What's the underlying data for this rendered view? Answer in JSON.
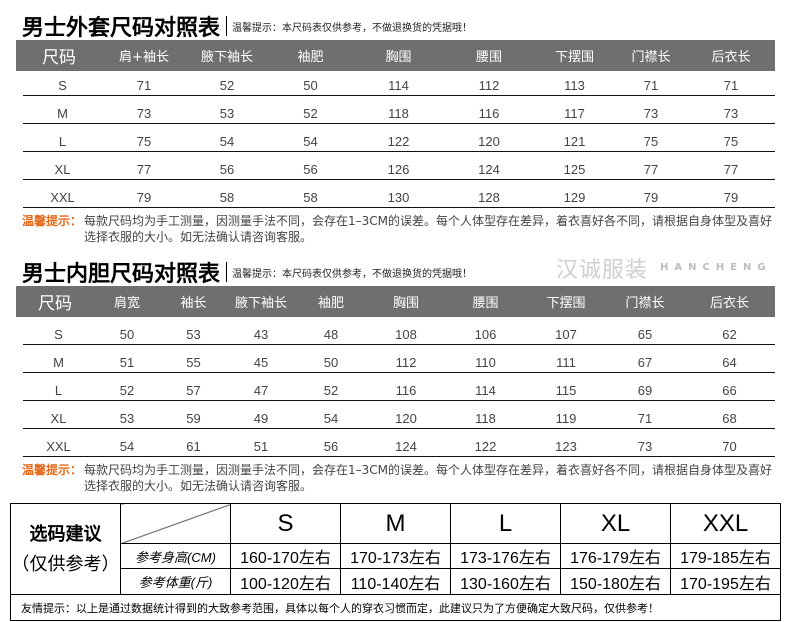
{
  "jacket": {
    "title": "男士外套尺码对照表",
    "tip": "温馨提示：本尺码表仅供参考，不做退换货的凭据哦！",
    "headers": [
      "尺码",
      "肩+袖长",
      "腋下袖长",
      "袖肥",
      "胸围",
      "腰围",
      "下摆围",
      "门襟长",
      "后衣长"
    ],
    "rows": [
      [
        "S",
        "71",
        "52",
        "50",
        "114",
        "112",
        "113",
        "71",
        "71"
      ],
      [
        "M",
        "73",
        "53",
        "52",
        "118",
        "116",
        "117",
        "73",
        "73"
      ],
      [
        "L",
        "75",
        "54",
        "54",
        "122",
        "120",
        "121",
        "75",
        "75"
      ],
      [
        "XL",
        "77",
        "56",
        "56",
        "126",
        "124",
        "125",
        "77",
        "77"
      ],
      [
        "XXL",
        "79",
        "58",
        "58",
        "130",
        "128",
        "129",
        "79",
        "79"
      ]
    ],
    "note_label": "温馨提示：",
    "note": "每款尺码均为手工测量，因测量手法不同，会存在1–3CM的误差。每个人体型存在差异，着衣喜好各不同，请根据自身体型及喜好选择衣服的大小。如无法确认请咨询客服。"
  },
  "liner": {
    "title": "男士内胆尺码对照表",
    "tip": "温馨提示：本尺码表仅供参考，不做退换货的凭据哦！",
    "headers": [
      "尺码",
      "肩宽",
      "袖长",
      "腋下袖长",
      "袖肥",
      "胸围",
      "腰围",
      "下摆围",
      "门襟长",
      "后衣长"
    ],
    "rows": [
      [
        "S",
        "50",
        "53",
        "43",
        "48",
        "108",
        "106",
        "107",
        "65",
        "62"
      ],
      [
        "M",
        "51",
        "55",
        "45",
        "50",
        "112",
        "110",
        "111",
        "67",
        "64"
      ],
      [
        "L",
        "52",
        "57",
        "47",
        "52",
        "116",
        "114",
        "115",
        "69",
        "66"
      ],
      [
        "XL",
        "53",
        "59",
        "49",
        "54",
        "120",
        "118",
        "119",
        "71",
        "68"
      ],
      [
        "XXL",
        "54",
        "61",
        "51",
        "56",
        "124",
        "122",
        "123",
        "73",
        "70"
      ]
    ],
    "note_label": "温馨提示：",
    "note": "每款尺码均为手工测量，因测量手法不同，会存在1–3CM的误差。每个人体型存在差异，着衣喜好各不同，请根据自身体型及喜好选择衣服的大小。如无法确认请咨询客服。"
  },
  "watermark": {
    "cn": "汉诚服装",
    "en": "HANCHENG"
  },
  "suggestion": {
    "title": "选码建议",
    "subtitle": "（仅供参考）",
    "sizes": [
      "S",
      "M",
      "L",
      "XL",
      "XXL"
    ],
    "height_label": "参考身高(CM)",
    "heights": [
      "160-170左右",
      "170-173左右",
      "173-176左右",
      "176-179左右",
      "179-185左右"
    ],
    "weight_label": "参考体重(斤)",
    "weights": [
      "100-120左右",
      "110-140左右",
      "130-160左右",
      "150-180左右",
      "170-195左右"
    ],
    "footer": "友情提示：以上是通过数据统计得到的大致参考范围，具体以每个人的穿衣习惯而定，此建议只为了方便确定大致尺码，仅供参考！"
  }
}
